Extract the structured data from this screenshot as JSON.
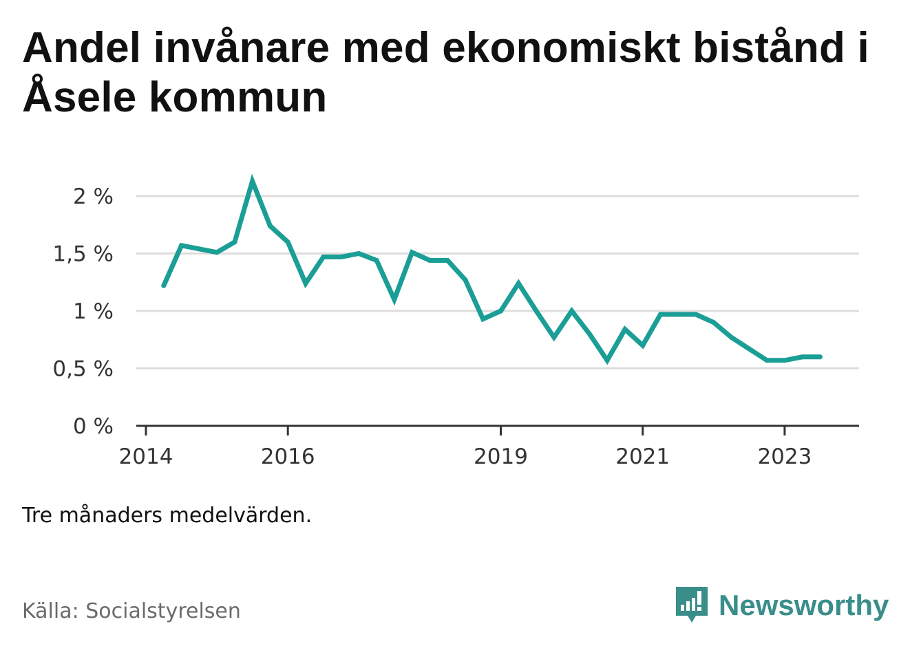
{
  "header": {
    "title": "Andel invånare med ekonomiskt bistånd i Åsele kommun"
  },
  "footer": {
    "note": "Tre månaders medelvärden.",
    "source": "Källa: Socialstyrelsen",
    "brand": "Newsworthy"
  },
  "colors": {
    "line": "#1a9e96",
    "grid": "#dddddd",
    "axis": "#333333",
    "brand": "#3a8e8a"
  },
  "chart_data": {
    "type": "line",
    "title": "Andel invånare med ekonomiskt bistånd i Åsele kommun",
    "xlabel": "",
    "ylabel": "",
    "ylim": [
      0,
      2
    ],
    "xlim": [
      "2014-01",
      "2024-01"
    ],
    "grid": true,
    "y_ticks": [
      {
        "value": 0,
        "label": "0 %"
      },
      {
        "value": 0.5,
        "label": "0,5 %"
      },
      {
        "value": 1,
        "label": "1 %"
      },
      {
        "value": 1.5,
        "label": "1,5 %"
      },
      {
        "value": 2,
        "label": "2 %"
      }
    ],
    "x_ticks": [
      {
        "value": "2014-01",
        "label": "2014"
      },
      {
        "value": "2016-01",
        "label": "2016"
      },
      {
        "value": "2019-01",
        "label": "2019"
      },
      {
        "value": "2021-01",
        "label": "2021"
      },
      {
        "value": "2023-01",
        "label": "2023"
      }
    ],
    "series": [
      {
        "x": [
          "2014-04",
          "2014-07",
          "2014-10",
          "2015-01",
          "2015-04",
          "2015-07",
          "2015-10",
          "2016-01",
          "2016-04",
          "2016-07",
          "2016-10",
          "2017-01",
          "2017-04",
          "2017-07",
          "2017-10",
          "2018-01",
          "2018-04",
          "2018-07",
          "2018-10",
          "2019-01",
          "2019-04",
          "2019-07",
          "2019-10",
          "2020-01",
          "2020-04",
          "2020-07",
          "2020-10",
          "2021-01",
          "2021-04",
          "2021-07",
          "2021-10",
          "2022-01",
          "2022-04",
          "2022-07",
          "2022-10",
          "2023-01",
          "2023-04",
          "2023-07"
        ],
        "values": [
          1.22,
          1.57,
          1.54,
          1.51,
          1.6,
          2.13,
          1.74,
          1.6,
          1.24,
          1.47,
          1.47,
          1.5,
          1.44,
          1.1,
          1.51,
          1.44,
          1.44,
          1.27,
          0.93,
          1.0,
          1.24,
          1.0,
          0.77,
          1.0,
          0.8,
          0.57,
          0.84,
          0.7,
          0.97,
          0.97,
          0.97,
          0.9,
          0.77,
          0.67,
          0.57,
          0.57,
          0.6,
          0.6
        ]
      }
    ]
  }
}
